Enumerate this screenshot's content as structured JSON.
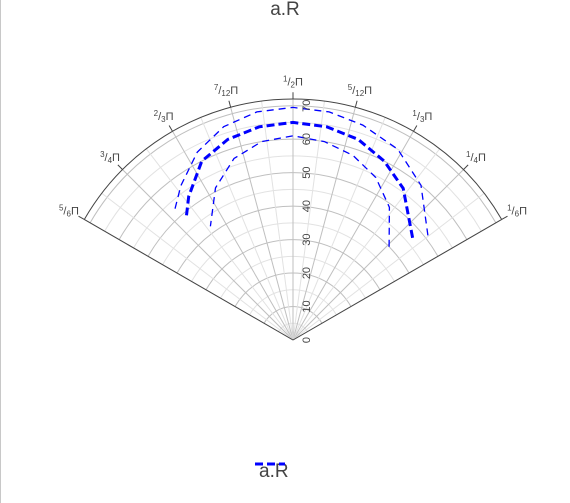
{
  "title": "a.R",
  "chart_data": {
    "type": "polar-line",
    "title": "a.R",
    "theta_unit": "radians (π)",
    "theta_range": [
      0.1667,
      0.8333
    ],
    "r_range": [
      0,
      72
    ],
    "angular_tick_labels": [
      {
        "theta_frac": 0.8333,
        "num": "5",
        "den": "6",
        "sym": "Π"
      },
      {
        "theta_frac": 0.75,
        "num": "3",
        "den": "4",
        "sym": "Π"
      },
      {
        "theta_frac": 0.6667,
        "num": "2",
        "den": "3",
        "sym": "Π"
      },
      {
        "theta_frac": 0.5833,
        "num": "7",
        "den": "12",
        "sym": "Π"
      },
      {
        "theta_frac": 0.5,
        "num": "1",
        "den": "2",
        "sym": "Π"
      },
      {
        "theta_frac": 0.4167,
        "num": "5",
        "den": "12",
        "sym": "Π"
      },
      {
        "theta_frac": 0.3333,
        "num": "1",
        "den": "3",
        "sym": "Π"
      },
      {
        "theta_frac": 0.25,
        "num": "1",
        "den": "4",
        "sym": "Π"
      },
      {
        "theta_frac": 0.1667,
        "num": "1",
        "den": "6",
        "sym": "Π"
      }
    ],
    "radial_ticks": [
      "0",
      "10",
      "20",
      "30",
      "40",
      "50",
      "60",
      "70"
    ],
    "legend_position": "bottom-center",
    "series": [
      {
        "name": "a.R",
        "color": "#0000ff",
        "style": "dashed",
        "line": "thick",
        "theta_frac": [
          0.225,
          0.3,
          0.35,
          0.4,
          0.45,
          0.5,
          0.55,
          0.6,
          0.65,
          0.7,
          0.725
        ],
        "r": [
          47,
          56,
          60,
          63,
          64.5,
          65,
          64.5,
          63,
          60,
          53,
          49
        ]
      },
      {
        "color": "#0000ff",
        "style": "dashed",
        "line": "thin",
        "theta_frac": [
          0.21,
          0.28,
          0.34,
          0.4,
          0.45,
          0.5,
          0.55,
          0.6,
          0.65,
          0.7,
          0.74
        ],
        "r": [
          51,
          60,
          65,
          67.5,
          69,
          69.5,
          69,
          67,
          63,
          57,
          52
        ]
      },
      {
        "color": "#0000ff",
        "style": "dashed",
        "line": "thin",
        "theta_frac": [
          0.245,
          0.3,
          0.35,
          0.4,
          0.45,
          0.5,
          0.55,
          0.6,
          0.65,
          0.7
        ],
        "r": [
          40,
          49,
          54.5,
          58,
          60,
          61,
          60,
          57,
          51,
          42
        ]
      }
    ]
  }
}
